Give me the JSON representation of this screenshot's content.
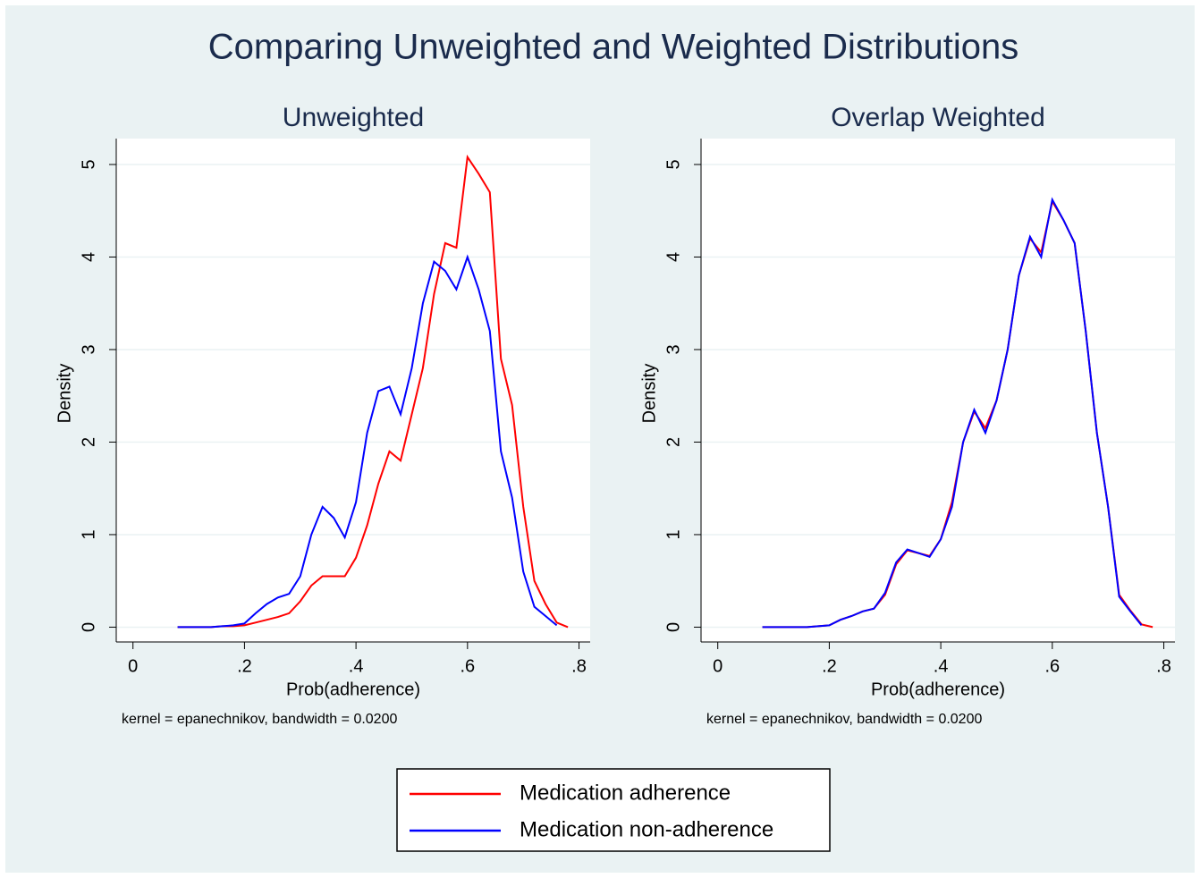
{
  "title": "Comparing Unweighted and Weighted Distributions",
  "chart_data": [
    {
      "type": "line",
      "title": "Unweighted",
      "x_label": "Prob(adherence)",
      "y_label": "Density",
      "note": "kernel = epanechnikov, bandwidth = 0.0200",
      "x": [
        0.08,
        0.1,
        0.12,
        0.14,
        0.16,
        0.18,
        0.2,
        0.22,
        0.24,
        0.26,
        0.28,
        0.3,
        0.32,
        0.34,
        0.36,
        0.38,
        0.4,
        0.42,
        0.44,
        0.46,
        0.48,
        0.5,
        0.52,
        0.54,
        0.56,
        0.58,
        0.6,
        0.62,
        0.64,
        0.66,
        0.68,
        0.7,
        0.72,
        0.74,
        0.76,
        0.78
      ],
      "series": [
        {
          "name": "Medication adherence",
          "color": "#ff0000",
          "values": [
            0,
            0,
            0,
            0,
            0.01,
            0.01,
            0.02,
            0.05,
            0.08,
            0.11,
            0.15,
            0.28,
            0.45,
            0.55,
            0.55,
            0.55,
            0.75,
            1.1,
            1.55,
            1.9,
            1.8,
            2.3,
            2.8,
            3.6,
            4.15,
            4.1,
            5.08,
            4.9,
            4.7,
            2.9,
            2.4,
            1.3,
            0.5,
            0.25,
            0.05,
            0
          ]
        },
        {
          "name": "Medication non-adherence",
          "color": "#0000ff",
          "values": [
            0,
            0,
            0,
            0,
            0.01,
            0.02,
            0.04,
            0.15,
            0.25,
            0.32,
            0.36,
            0.55,
            1.0,
            1.3,
            1.18,
            0.97,
            1.35,
            2.1,
            2.55,
            2.6,
            2.3,
            2.8,
            3.5,
            3.95,
            3.85,
            3.65,
            4.0,
            3.65,
            3.2,
            1.9,
            1.4,
            0.6,
            0.22,
            0.12,
            0.02,
            null
          ]
        }
      ],
      "xlim": [
        -0.03,
        0.82
      ],
      "ylim": [
        -0.16,
        5.28
      ],
      "xticks": [
        0,
        {
          "value": 0.2,
          "label": ".2"
        },
        {
          "value": 0.4,
          "label": ".4"
        },
        {
          "value": 0.6,
          "label": ".6"
        },
        {
          "value": 0.8,
          "label": ".8"
        }
      ],
      "yticks": [
        0,
        1,
        2,
        3,
        4,
        5
      ],
      "grid": true
    },
    {
      "type": "line",
      "title": "Overlap Weighted",
      "x_label": "Prob(adherence)",
      "y_label": "Density",
      "note": "kernel = epanechnikov, bandwidth = 0.0200",
      "x": [
        0.08,
        0.1,
        0.12,
        0.14,
        0.16,
        0.18,
        0.2,
        0.22,
        0.24,
        0.26,
        0.28,
        0.3,
        0.32,
        0.34,
        0.36,
        0.38,
        0.4,
        0.42,
        0.44,
        0.46,
        0.48,
        0.5,
        0.52,
        0.54,
        0.56,
        0.58,
        0.6,
        0.62,
        0.64,
        0.66,
        0.68,
        0.7,
        0.72,
        0.74,
        0.76,
        0.78
      ],
      "series": [
        {
          "name": "Medication adherence",
          "color": "#ff0000",
          "values": [
            0,
            0,
            0,
            0,
            0,
            0.01,
            0.02,
            0.08,
            0.12,
            0.17,
            0.2,
            0.35,
            0.68,
            0.83,
            0.8,
            0.77,
            0.95,
            1.35,
            2.0,
            2.33,
            2.15,
            2.45,
            3.0,
            3.8,
            4.2,
            4.05,
            4.6,
            4.4,
            4.15,
            3.2,
            2.1,
            1.3,
            0.35,
            0.18,
            0.03,
            0
          ]
        },
        {
          "name": "Medication non-adherence",
          "color": "#0000ff",
          "values": [
            0,
            0,
            0,
            0,
            0,
            0.01,
            0.02,
            0.08,
            0.12,
            0.17,
            0.2,
            0.37,
            0.7,
            0.84,
            0.8,
            0.76,
            0.95,
            1.3,
            2.0,
            2.35,
            2.1,
            2.45,
            3.0,
            3.8,
            4.22,
            4.0,
            4.62,
            4.4,
            4.15,
            3.2,
            2.1,
            1.3,
            0.33,
            0.17,
            0.02,
            null
          ]
        }
      ],
      "xlim": [
        -0.03,
        0.82
      ],
      "ylim": [
        -0.16,
        5.28
      ],
      "xticks": [
        0,
        {
          "value": 0.2,
          "label": ".2"
        },
        {
          "value": 0.4,
          "label": ".4"
        },
        {
          "value": 0.6,
          "label": ".6"
        },
        {
          "value": 0.8,
          "label": ".8"
        }
      ],
      "yticks": [
        0,
        1,
        2,
        3,
        4,
        5
      ],
      "grid": true
    }
  ]
}
